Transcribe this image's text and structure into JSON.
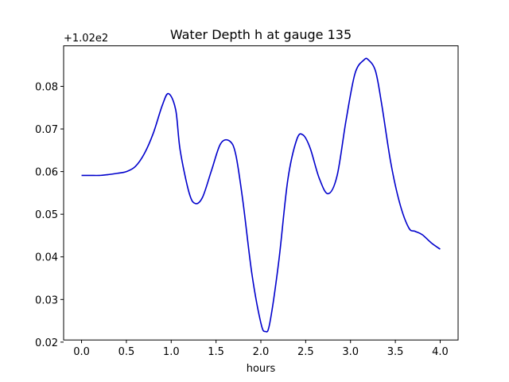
{
  "chart_data": {
    "type": "line",
    "title": "Water Depth h at gauge 135",
    "xlabel": "hours",
    "ylabel": "",
    "y_offset_label": "+1.02e2",
    "xlim": [
      -0.2,
      4.2
    ],
    "ylim": [
      0.0205,
      0.0895
    ],
    "x_ticks": [
      0.0,
      0.5,
      1.0,
      1.5,
      2.0,
      2.5,
      3.0,
      3.5,
      4.0
    ],
    "x_tick_labels": [
      "0.0",
      "0.5",
      "1.0",
      "1.5",
      "2.0",
      "2.5",
      "3.0",
      "3.5",
      "4.0"
    ],
    "y_ticks": [
      0.02,
      0.03,
      0.04,
      0.05,
      0.06,
      0.07,
      0.08
    ],
    "y_tick_labels": [
      "0.02",
      "0.03",
      "0.04",
      "0.05",
      "0.06",
      "0.07",
      "0.08"
    ],
    "grid": false,
    "series": [
      {
        "color": "#0000cc",
        "x": [
          0.0,
          0.1,
          0.2,
          0.3,
          0.4,
          0.5,
          0.6,
          0.7,
          0.8,
          0.9,
          0.97,
          1.05,
          1.1,
          1.2,
          1.27,
          1.35,
          1.45,
          1.55,
          1.65,
          1.72,
          1.8,
          1.9,
          2.0,
          2.05,
          2.1,
          2.2,
          2.3,
          2.4,
          2.47,
          2.55,
          2.65,
          2.75,
          2.85,
          2.95,
          3.05,
          3.15,
          3.2,
          3.28,
          3.35,
          3.45,
          3.55,
          3.65,
          3.72,
          3.8,
          3.9,
          4.0
        ],
        "y": [
          0.0591,
          0.0591,
          0.0591,
          0.0593,
          0.0596,
          0.06,
          0.0612,
          0.0642,
          0.069,
          0.0755,
          0.0783,
          0.0745,
          0.065,
          0.055,
          0.0525,
          0.054,
          0.0603,
          0.0665,
          0.0672,
          0.064,
          0.053,
          0.036,
          0.0245,
          0.0225,
          0.0245,
          0.039,
          0.058,
          0.0675,
          0.0686,
          0.0655,
          0.0585,
          0.0548,
          0.059,
          0.072,
          0.083,
          0.0862,
          0.0862,
          0.0835,
          0.0755,
          0.062,
          0.0525,
          0.0468,
          0.046,
          0.0452,
          0.0433,
          0.0418
        ]
      }
    ]
  }
}
